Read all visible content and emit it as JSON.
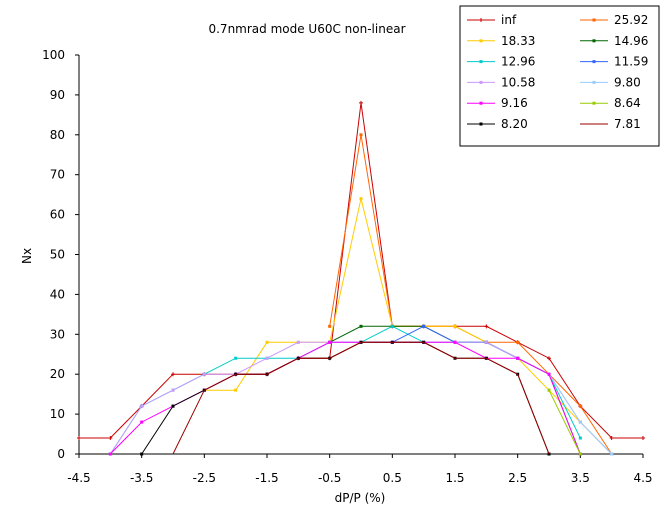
{
  "chart_data": {
    "type": "line",
    "title": "0.7nmrad mode U60C non-linear",
    "xlabel": "dP/P (%)",
    "ylabel": "Nx",
    "xlim": [
      -4.5,
      4.5
    ],
    "ylim": [
      0,
      100
    ],
    "x_ticks": [
      "-4.5",
      "-3.5",
      "-2.5",
      "-1.5",
      "-0.5",
      "0.5",
      "1.5",
      "2.5",
      "3.5",
      "4.5"
    ],
    "y_ticks": [
      "0",
      "10",
      "20",
      "30",
      "40",
      "50",
      "60",
      "70",
      "80",
      "90",
      "100"
    ],
    "grid": false,
    "legend_position": "top-right",
    "x": [
      -4.5,
      -4,
      -3.5,
      -3,
      -2.5,
      -2,
      -1.5,
      -1,
      -0.5,
      0,
      0.5,
      1,
      1.5,
      2,
      2.5,
      3,
      3.5,
      4,
      4.5
    ],
    "series": [
      {
        "name": "inf",
        "color": "#cc0000",
        "marker": "plus",
        "values": [
          4,
          4,
          12,
          20,
          20,
          20,
          20,
          24,
          24,
          88,
          32,
          32,
          32,
          32,
          28,
          24,
          12,
          4,
          4
        ]
      },
      {
        "name": "25.92",
        "color": "#ff6600",
        "marker": "dot",
        "values": [
          null,
          null,
          null,
          null,
          null,
          null,
          null,
          null,
          32,
          80,
          32,
          32,
          32,
          28,
          28,
          20,
          12,
          0,
          null
        ]
      },
      {
        "name": "18.33",
        "color": "#ffcc00",
        "marker": "dot",
        "values": [
          null,
          null,
          null,
          null,
          16,
          16,
          28,
          28,
          28,
          64,
          32,
          32,
          32,
          28,
          24,
          16,
          8,
          0,
          null
        ]
      },
      {
        "name": "14.96",
        "color": "#006600",
        "marker": "dot",
        "values": [
          null,
          null,
          null,
          null,
          null,
          null,
          null,
          null,
          28,
          32,
          32,
          32,
          28,
          28,
          24,
          20,
          0,
          null,
          null
        ]
      },
      {
        "name": "12.96",
        "color": "#00cccc",
        "marker": "dot",
        "values": [
          null,
          0,
          12,
          16,
          20,
          24,
          24,
          24,
          28,
          28,
          32,
          28,
          28,
          28,
          24,
          20,
          4,
          null,
          null
        ]
      },
      {
        "name": "11.59",
        "color": "#3366ff",
        "marker": "dot",
        "values": [
          null,
          null,
          null,
          null,
          null,
          null,
          null,
          null,
          null,
          null,
          28,
          32,
          28,
          28,
          24,
          20,
          null,
          null,
          null
        ]
      },
      {
        "name": "10.58",
        "color": "#cc99ff",
        "marker": "dot",
        "values": [
          null,
          0,
          12,
          16,
          20,
          20,
          24,
          28,
          28,
          28,
          28,
          28,
          28,
          28,
          24,
          20,
          8,
          0,
          null
        ]
      },
      {
        "name": "9.80",
        "color": "#99ccff",
        "marker": "dot",
        "values": [
          null,
          null,
          null,
          null,
          null,
          null,
          null,
          null,
          null,
          null,
          null,
          null,
          null,
          null,
          null,
          20,
          8,
          0,
          null
        ]
      },
      {
        "name": "9.16",
        "color": "#ff00ff",
        "marker": "dot",
        "values": [
          null,
          0,
          8,
          12,
          16,
          20,
          20,
          24,
          28,
          28,
          28,
          28,
          28,
          24,
          24,
          20,
          0,
          null,
          null
        ]
      },
      {
        "name": "8.64",
        "color": "#99cc00",
        "marker": "dot",
        "values": [
          null,
          null,
          null,
          null,
          null,
          null,
          null,
          null,
          null,
          null,
          null,
          null,
          null,
          null,
          null,
          16,
          0,
          null,
          null
        ]
      },
      {
        "name": "8.20",
        "color": "#000000",
        "marker": "dot",
        "values": [
          null,
          null,
          0,
          12,
          16,
          20,
          20,
          24,
          24,
          28,
          28,
          28,
          24,
          24,
          20,
          0,
          null,
          null,
          null
        ]
      },
      {
        "name": "7.81",
        "color": "#990000",
        "marker": "none",
        "values": [
          null,
          null,
          null,
          0,
          16,
          20,
          20,
          24,
          24,
          28,
          28,
          28,
          24,
          24,
          20,
          0,
          null,
          null,
          null
        ]
      }
    ]
  }
}
